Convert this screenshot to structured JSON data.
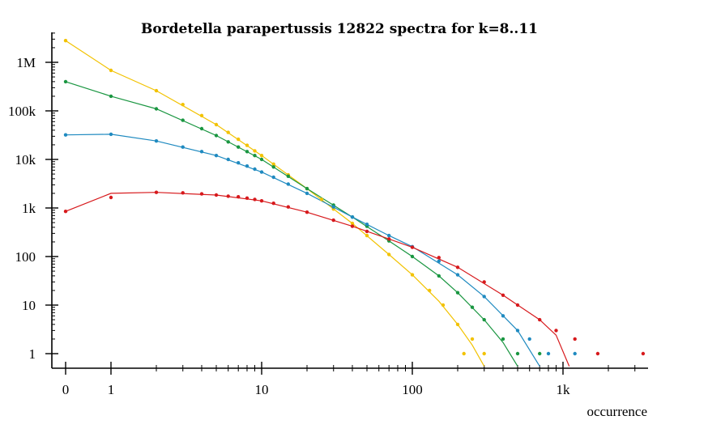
{
  "chart_data": {
    "type": "scatter",
    "title": "Bordetella parapertussis 12822 spectra for k=8..11",
    "xlabel": "occurrence",
    "ylabel": "",
    "x_scale": "log (with 0 mapped left of 1)",
    "y_scale": "log",
    "xlim": [
      0,
      3500
    ],
    "ylim": [
      0.5,
      4000000
    ],
    "x_ticks": [
      {
        "value": 0,
        "label": "0"
      },
      {
        "value": 1,
        "label": "1"
      },
      {
        "value": 10,
        "label": "10"
      },
      {
        "value": 100,
        "label": "100"
      },
      {
        "value": 1000,
        "label": "1k"
      }
    ],
    "y_ticks": [
      {
        "value": 1,
        "label": "1"
      },
      {
        "value": 10,
        "label": "10"
      },
      {
        "value": 100,
        "label": "100"
      },
      {
        "value": 1000,
        "label": "1k"
      },
      {
        "value": 10000,
        "label": "10k"
      },
      {
        "value": 100000,
        "label": "100k"
      },
      {
        "value": 1000000,
        "label": "1M"
      }
    ],
    "grid": false,
    "legend": "none",
    "series": [
      {
        "color": "#f2c200",
        "points": [
          [
            0,
            2800000
          ],
          [
            1,
            680000
          ],
          [
            2,
            260000
          ],
          [
            3,
            135000
          ],
          [
            4,
            80000
          ],
          [
            5,
            52000
          ],
          [
            6,
            36000
          ],
          [
            7,
            26000
          ],
          [
            8,
            19500
          ],
          [
            9,
            15000
          ],
          [
            10,
            12000
          ],
          [
            12,
            8000
          ],
          [
            15,
            4800
          ],
          [
            20,
            2500
          ],
          [
            25,
            1500
          ],
          [
            30,
            950
          ],
          [
            40,
            480
          ],
          [
            50,
            270
          ],
          [
            70,
            110
          ],
          [
            100,
            42
          ],
          [
            130,
            20
          ],
          [
            160,
            10
          ],
          [
            200,
            4
          ],
          [
            250,
            2
          ],
          [
            220,
            1
          ],
          [
            300,
            1
          ]
        ],
        "fit": [
          [
            0,
            2800000
          ],
          [
            1,
            680000
          ],
          [
            2,
            260000
          ],
          [
            5,
            52000
          ],
          [
            10,
            12000
          ],
          [
            20,
            2500
          ],
          [
            40,
            480
          ],
          [
            70,
            110
          ],
          [
            100,
            42
          ],
          [
            150,
            12
          ],
          [
            200,
            4
          ],
          [
            250,
            1.5
          ],
          [
            300,
            0.55
          ]
        ]
      },
      {
        "color": "#1a9641",
        "points": [
          [
            0,
            400000
          ],
          [
            1,
            200000
          ],
          [
            2,
            110000
          ],
          [
            3,
            64000
          ],
          [
            4,
            43000
          ],
          [
            5,
            31000
          ],
          [
            6,
            23000
          ],
          [
            7,
            18000
          ],
          [
            8,
            14500
          ],
          [
            9,
            12000
          ],
          [
            10,
            10000
          ],
          [
            12,
            7000
          ],
          [
            15,
            4500
          ],
          [
            20,
            2500
          ],
          [
            30,
            1150
          ],
          [
            40,
            650
          ],
          [
            50,
            420
          ],
          [
            70,
            210
          ],
          [
            100,
            100
          ],
          [
            150,
            40
          ],
          [
            200,
            18
          ],
          [
            250,
            9
          ],
          [
            300,
            5
          ],
          [
            400,
            2
          ],
          [
            500,
            1
          ],
          [
            700,
            1
          ]
        ],
        "fit": [
          [
            0,
            400000
          ],
          [
            1,
            200000
          ],
          [
            2,
            110000
          ],
          [
            5,
            31000
          ],
          [
            10,
            10000
          ],
          [
            20,
            2500
          ],
          [
            40,
            650
          ],
          [
            70,
            210
          ],
          [
            100,
            100
          ],
          [
            150,
            40
          ],
          [
            200,
            18
          ],
          [
            300,
            5
          ],
          [
            400,
            1.7
          ],
          [
            500,
            0.55
          ]
        ]
      },
      {
        "color": "#1f8ac0",
        "points": [
          [
            0,
            32000
          ],
          [
            1,
            33000
          ],
          [
            2,
            24000
          ],
          [
            3,
            18000
          ],
          [
            4,
            14500
          ],
          [
            5,
            12000
          ],
          [
            6,
            10000
          ],
          [
            7,
            8500
          ],
          [
            8,
            7300
          ],
          [
            9,
            6300
          ],
          [
            10,
            5500
          ],
          [
            12,
            4300
          ],
          [
            15,
            3100
          ],
          [
            20,
            2000
          ],
          [
            30,
            1050
          ],
          [
            40,
            650
          ],
          [
            50,
            460
          ],
          [
            70,
            270
          ],
          [
            100,
            160
          ],
          [
            150,
            80
          ],
          [
            200,
            42
          ],
          [
            300,
            15
          ],
          [
            400,
            6
          ],
          [
            500,
            3
          ],
          [
            600,
            2
          ],
          [
            800,
            1
          ],
          [
            1200,
            1
          ]
        ],
        "fit": [
          [
            0,
            32000
          ],
          [
            1,
            33000
          ],
          [
            2,
            24000
          ],
          [
            5,
            12000
          ],
          [
            10,
            5500
          ],
          [
            20,
            2000
          ],
          [
            40,
            650
          ],
          [
            70,
            270
          ],
          [
            100,
            160
          ],
          [
            200,
            42
          ],
          [
            300,
            15
          ],
          [
            500,
            3
          ],
          [
            700,
            0.55
          ]
        ]
      },
      {
        "color": "#d7191c",
        "points": [
          [
            0,
            850
          ],
          [
            1,
            1650
          ],
          [
            2,
            2100
          ],
          [
            3,
            2050
          ],
          [
            4,
            1950
          ],
          [
            5,
            1850
          ],
          [
            6,
            1750
          ],
          [
            7,
            1700
          ],
          [
            8,
            1600
          ],
          [
            9,
            1500
          ],
          [
            10,
            1400
          ],
          [
            12,
            1250
          ],
          [
            15,
            1050
          ],
          [
            20,
            820
          ],
          [
            30,
            560
          ],
          [
            40,
            420
          ],
          [
            50,
            330
          ],
          [
            70,
            230
          ],
          [
            100,
            155
          ],
          [
            150,
            95
          ],
          [
            200,
            60
          ],
          [
            300,
            30
          ],
          [
            400,
            16
          ],
          [
            500,
            10
          ],
          [
            700,
            5
          ],
          [
            900,
            3
          ],
          [
            1200,
            2
          ],
          [
            1700,
            1
          ],
          [
            3400,
            1
          ]
        ],
        "fit": [
          [
            0,
            850
          ],
          [
            1,
            2000
          ],
          [
            2,
            2100
          ],
          [
            5,
            1850
          ],
          [
            10,
            1400
          ],
          [
            20,
            820
          ],
          [
            40,
            420
          ],
          [
            70,
            230
          ],
          [
            100,
            155
          ],
          [
            200,
            60
          ],
          [
            400,
            16
          ],
          [
            700,
            5
          ],
          [
            900,
            2.4
          ],
          [
            1100,
            0.55
          ]
        ]
      }
    ]
  }
}
